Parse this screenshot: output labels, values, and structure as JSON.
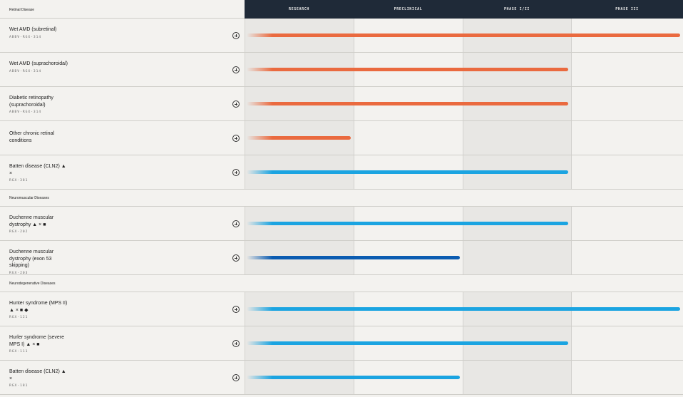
{
  "stages": [
    "RESEARCH",
    "PRECLINICAL",
    "PHASE I/II",
    "PHASE III"
  ],
  "sections": [
    {
      "title": "Retinal Disease",
      "rows": [
        {
          "name": "Wet AMD (subretinal)",
          "code": "ABBV-RGX-314",
          "progress": 4,
          "color": "#ea6a3f"
        },
        {
          "name": "Wet AMD (suprachoroidal)",
          "code": "ABBV-RGX-314",
          "progress": 3,
          "color": "#ea6a3f"
        },
        {
          "name": "Diabetic retinopathy (suprachoroidal)",
          "code": "ABBV-RGX-314",
          "progress": 3,
          "color": "#ea6a3f"
        },
        {
          "name": "Other chronic retinal conditions",
          "progress": 1,
          "color": "#ea6a3f"
        },
        {
          "name": "Batten disease (CLN2) ▲ ×",
          "code": "RGX-381",
          "progress": 3,
          "color": "#1ba4e1"
        }
      ]
    },
    {
      "title": "Neuromuscular Diseases",
      "rows": [
        {
          "name": "Duchenne muscular dystrophy ▲ × ■",
          "code": "RGX-202",
          "progress": 3,
          "color": "#1ba4e1"
        },
        {
          "name": "Duchenne muscular dystrophy (exon 53 skipping)",
          "code": "RGX-203",
          "progress": 2,
          "color": "#0b5cb1"
        }
      ]
    },
    {
      "title": "Neurodegenerative Diseases",
      "rows": [
        {
          "name": "Hunter syndrome (MPS II) ▲ × ■ ◆",
          "code": "RGX-121",
          "progress": 4,
          "color": "#1ba4e1"
        },
        {
          "name": "Hurler syndrome (severe MPS I) ▲ × ■",
          "code": "RGX-111",
          "progress": 3,
          "color": "#1ba4e1"
        },
        {
          "name": "Batten disease (CLN2) ▲ ×",
          "code": "RGX-181",
          "progress": 2,
          "color": "#1ba4e1"
        }
      ]
    }
  ]
}
